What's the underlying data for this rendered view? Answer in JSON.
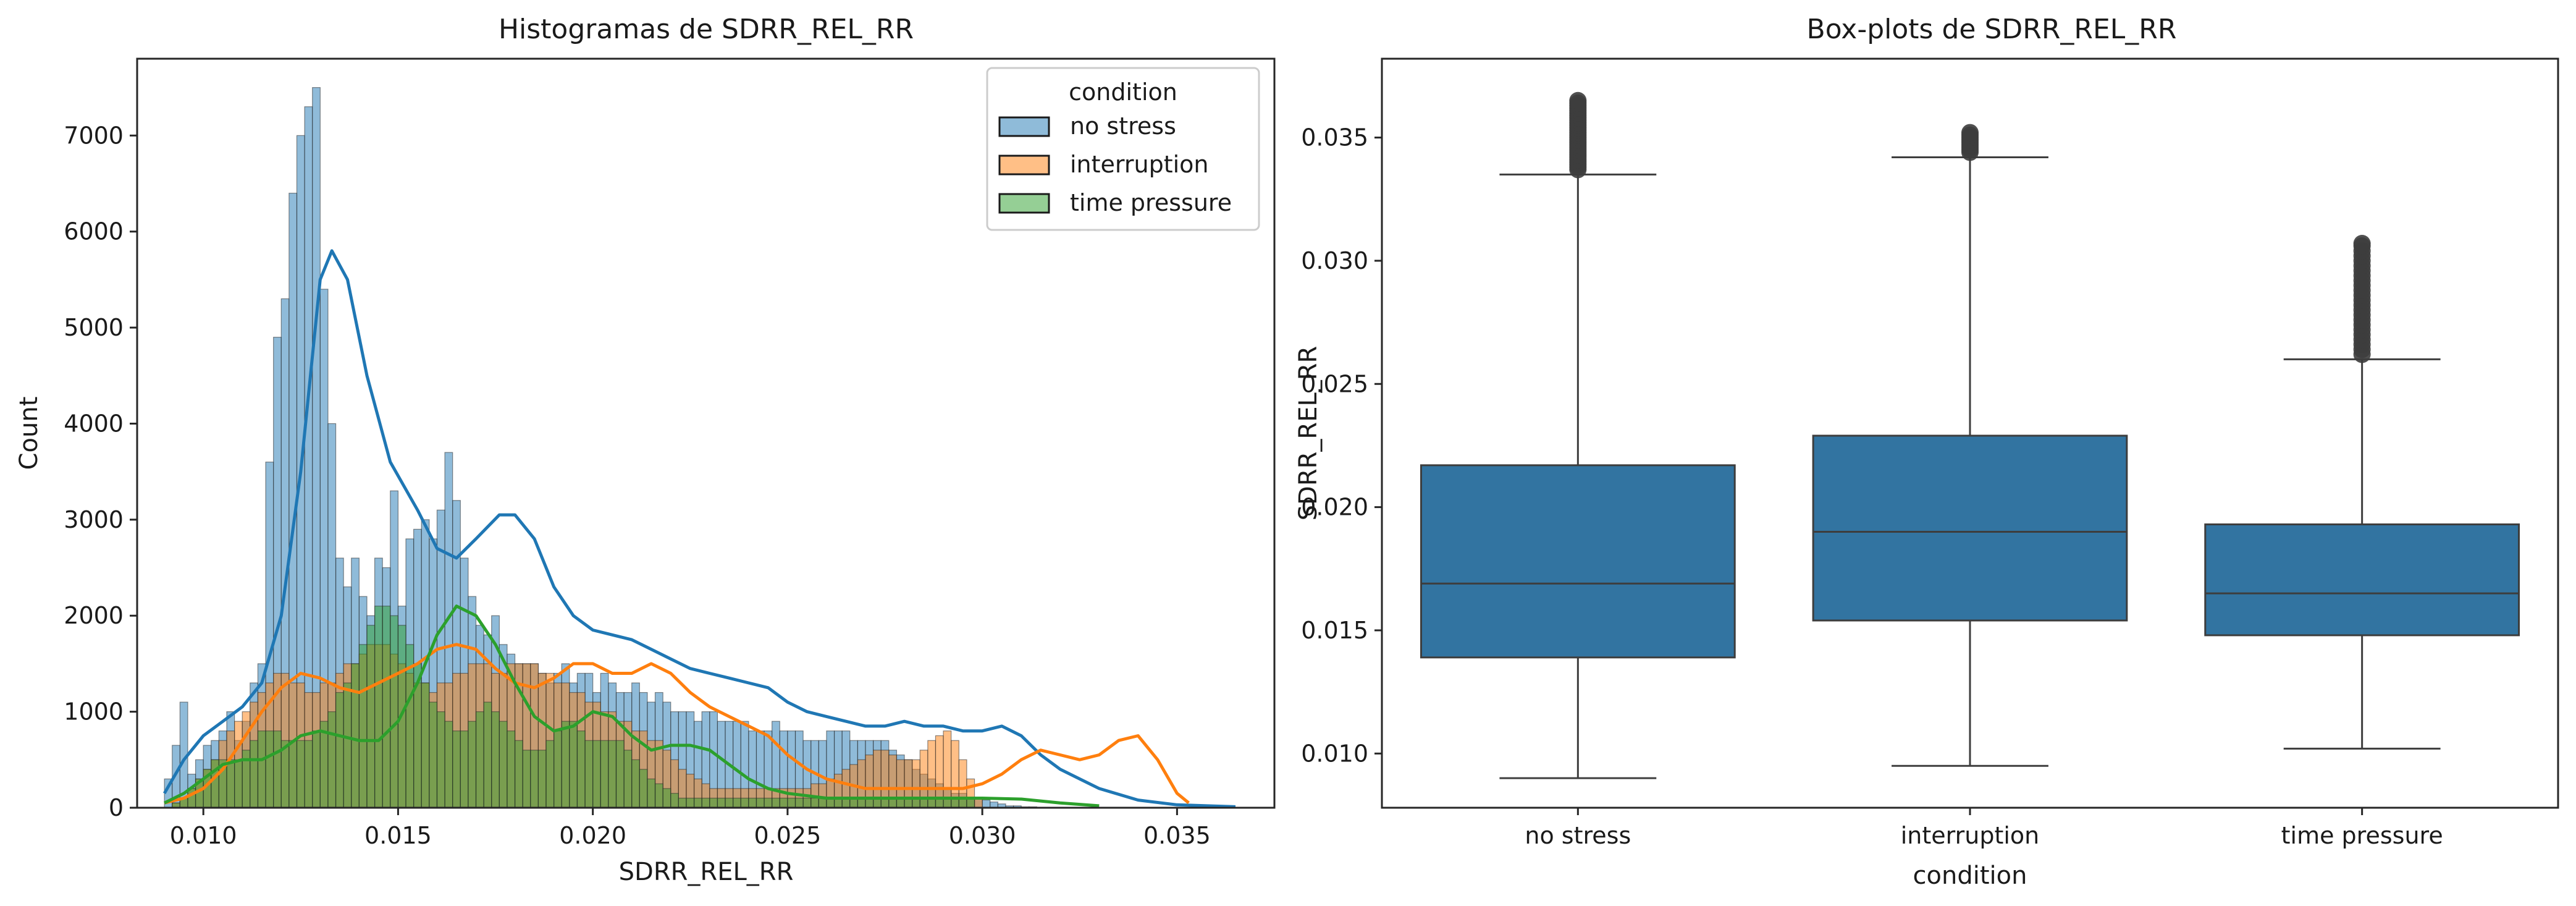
{
  "chart_data": [
    {
      "type": "histogram",
      "title": "Histogramas de SDRR_REL_RR",
      "xlabel": "SDRR_REL_RR",
      "ylabel": "Count",
      "xlim": [
        0.0083,
        0.0375
      ],
      "ylim": [
        0,
        7800
      ],
      "xticks": [
        0.01,
        0.015,
        0.02,
        0.025,
        0.03,
        0.035
      ],
      "xtick_labels": [
        "0.010",
        "0.015",
        "0.020",
        "0.025",
        "0.030",
        "0.035"
      ],
      "yticks": [
        0,
        1000,
        2000,
        3000,
        4000,
        5000,
        6000,
        7000
      ],
      "ytick_labels": [
        "0",
        "1000",
        "2000",
        "3000",
        "4000",
        "5000",
        "6000",
        "7000"
      ],
      "bin_start": 0.009,
      "bin_width": 0.0002,
      "grid": false,
      "legend": {
        "title": "condition",
        "position": "top-right"
      },
      "series": [
        {
          "name": "no stress",
          "color": "#1f77b4",
          "counts": [
            300,
            650,
            1100,
            350,
            500,
            650,
            700,
            800,
            1000,
            700,
            900,
            1300,
            1500,
            3600,
            4900,
            5300,
            6400,
            7000,
            7300,
            7500,
            5400,
            4000,
            2600,
            2300,
            2600,
            2200,
            2000,
            2600,
            2500,
            3300,
            2100,
            2800,
            2900,
            3000,
            2800,
            3100,
            3700,
            3200,
            2600,
            2200,
            1900,
            1800,
            2000,
            1700,
            1600,
            1500,
            1500,
            1500,
            1400,
            1300,
            1400,
            1500,
            1300,
            1400,
            1400,
            1200,
            1400,
            1300,
            1200,
            1200,
            1300,
            1200,
            1100,
            1200,
            1100,
            1000,
            1000,
            1000,
            900,
            1000,
            1000,
            900,
            900,
            900,
            900,
            800,
            800,
            800,
            900,
            800,
            800,
            800,
            700,
            700,
            700,
            800,
            800,
            800,
            700,
            700,
            700,
            700,
            700,
            600,
            550,
            500,
            400,
            350,
            300,
            250,
            200,
            150,
            150,
            100,
            100,
            80,
            60,
            40,
            20,
            20,
            10,
            10
          ],
          "kde": [
            [
              0.009,
              150
            ],
            [
              0.0095,
              500
            ],
            [
              0.01,
              750
            ],
            [
              0.0105,
              900
            ],
            [
              0.011,
              1050
            ],
            [
              0.0115,
              1300
            ],
            [
              0.012,
              2000
            ],
            [
              0.0125,
              3500
            ],
            [
              0.013,
              5500
            ],
            [
              0.0133,
              5800
            ],
            [
              0.0137,
              5500
            ],
            [
              0.0142,
              4500
            ],
            [
              0.0148,
              3600
            ],
            [
              0.0155,
              3100
            ],
            [
              0.016,
              2700
            ],
            [
              0.0165,
              2600
            ],
            [
              0.017,
              2800
            ],
            [
              0.0176,
              3050
            ],
            [
              0.018,
              3050
            ],
            [
              0.0185,
              2800
            ],
            [
              0.019,
              2300
            ],
            [
              0.0195,
              2000
            ],
            [
              0.02,
              1850
            ],
            [
              0.0205,
              1800
            ],
            [
              0.021,
              1750
            ],
            [
              0.0215,
              1650
            ],
            [
              0.022,
              1550
            ],
            [
              0.0225,
              1450
            ],
            [
              0.023,
              1400
            ],
            [
              0.0235,
              1350
            ],
            [
              0.024,
              1300
            ],
            [
              0.0245,
              1250
            ],
            [
              0.025,
              1100
            ],
            [
              0.0255,
              1000
            ],
            [
              0.026,
              950
            ],
            [
              0.0265,
              900
            ],
            [
              0.027,
              850
            ],
            [
              0.0275,
              850
            ],
            [
              0.028,
              900
            ],
            [
              0.0285,
              850
            ],
            [
              0.029,
              850
            ],
            [
              0.0295,
              800
            ],
            [
              0.03,
              800
            ],
            [
              0.0305,
              850
            ],
            [
              0.031,
              750
            ],
            [
              0.0315,
              550
            ],
            [
              0.032,
              400
            ],
            [
              0.0325,
              300
            ],
            [
              0.033,
              200
            ],
            [
              0.034,
              80
            ],
            [
              0.035,
              30
            ],
            [
              0.0365,
              10
            ]
          ]
        },
        {
          "name": "interruption",
          "color": "#ff7f0e",
          "counts": [
            0,
            50,
            100,
            200,
            300,
            400,
            500,
            700,
            800,
            900,
            1000,
            1100,
            1200,
            1300,
            1400,
            1400,
            1300,
            1300,
            1200,
            1200,
            1300,
            1300,
            1400,
            1500,
            1500,
            1600,
            1700,
            1700,
            1700,
            1600,
            1500,
            1400,
            1300,
            1300,
            1200,
            1300,
            1300,
            1400,
            1400,
            1500,
            1500,
            1500,
            1400,
            1400,
            1500,
            1500,
            1500,
            1500,
            1400,
            1400,
            1300,
            1300,
            1200,
            1200,
            1100,
            1100,
            1000,
            1000,
            900,
            900,
            800,
            800,
            700,
            700,
            600,
            500,
            400,
            350,
            300,
            250,
            200,
            200,
            200,
            200,
            200,
            200,
            200,
            200,
            200,
            200,
            200,
            200,
            200,
            250,
            250,
            300,
            350,
            400,
            450,
            500,
            550,
            600,
            600,
            550,
            500,
            500,
            500,
            600,
            700,
            750,
            800,
            700,
            500,
            300,
            100,
            0,
            0,
            0,
            0,
            0,
            0,
            0
          ],
          "kde": [
            [
              0.009,
              50
            ],
            [
              0.0095,
              100
            ],
            [
              0.01,
              200
            ],
            [
              0.0105,
              400
            ],
            [
              0.011,
              700
            ],
            [
              0.0115,
              1000
            ],
            [
              0.012,
              1250
            ],
            [
              0.0125,
              1400
            ],
            [
              0.013,
              1350
            ],
            [
              0.0135,
              1250
            ],
            [
              0.014,
              1200
            ],
            [
              0.0145,
              1300
            ],
            [
              0.015,
              1400
            ],
            [
              0.0155,
              1500
            ],
            [
              0.016,
              1650
            ],
            [
              0.0165,
              1700
            ],
            [
              0.017,
              1650
            ],
            [
              0.0175,
              1450
            ],
            [
              0.018,
              1300
            ],
            [
              0.0185,
              1250
            ],
            [
              0.019,
              1350
            ],
            [
              0.0195,
              1500
            ],
            [
              0.02,
              1500
            ],
            [
              0.0205,
              1400
            ],
            [
              0.021,
              1400
            ],
            [
              0.0215,
              1500
            ],
            [
              0.022,
              1400
            ],
            [
              0.0225,
              1200
            ],
            [
              0.023,
              1050
            ],
            [
              0.0235,
              950
            ],
            [
              0.024,
              850
            ],
            [
              0.0245,
              750
            ],
            [
              0.025,
              550
            ],
            [
              0.0255,
              400
            ],
            [
              0.026,
              300
            ],
            [
              0.0265,
              250
            ],
            [
              0.027,
              200
            ],
            [
              0.0275,
              200
            ],
            [
              0.028,
              200
            ],
            [
              0.0285,
              200
            ],
            [
              0.029,
              200
            ],
            [
              0.0295,
              200
            ],
            [
              0.03,
              250
            ],
            [
              0.0305,
              350
            ],
            [
              0.031,
              500
            ],
            [
              0.0315,
              600
            ],
            [
              0.032,
              550
            ],
            [
              0.0325,
              500
            ],
            [
              0.033,
              550
            ],
            [
              0.0335,
              700
            ],
            [
              0.034,
              750
            ],
            [
              0.0345,
              500
            ],
            [
              0.035,
              150
            ],
            [
              0.0353,
              50
            ]
          ]
        },
        {
          "name": "time pressure",
          "color": "#2ca02c",
          "counts": [
            0,
            50,
            100,
            200,
            300,
            400,
            500,
            500,
            500,
            500,
            600,
            700,
            800,
            800,
            800,
            700,
            700,
            700,
            700,
            800,
            900,
            1000,
            1200,
            1300,
            1500,
            1700,
            1900,
            2100,
            2100,
            2000,
            1900,
            1700,
            1500,
            1300,
            1100,
            1000,
            900,
            800,
            800,
            900,
            1000,
            1100,
            1000,
            900,
            800,
            700,
            600,
            600,
            600,
            700,
            800,
            900,
            900,
            800,
            700,
            700,
            700,
            700,
            700,
            600,
            500,
            400,
            300,
            250,
            200,
            150,
            100,
            100,
            100,
            100,
            100,
            100,
            100,
            100,
            100,
            100,
            100,
            100,
            100,
            100,
            100,
            100,
            100,
            100,
            100,
            100,
            100,
            100,
            100,
            100,
            100,
            100,
            100,
            100,
            100,
            100,
            100,
            100,
            100,
            100,
            100,
            100,
            100,
            100,
            0,
            0,
            0,
            0,
            0,
            0,
            0,
            0
          ],
          "kde": [
            [
              0.009,
              50
            ],
            [
              0.0095,
              150
            ],
            [
              0.01,
              300
            ],
            [
              0.0105,
              450
            ],
            [
              0.011,
              500
            ],
            [
              0.0115,
              500
            ],
            [
              0.012,
              600
            ],
            [
              0.0125,
              750
            ],
            [
              0.013,
              800
            ],
            [
              0.0135,
              750
            ],
            [
              0.014,
              700
            ],
            [
              0.0145,
              700
            ],
            [
              0.015,
              900
            ],
            [
              0.0155,
              1300
            ],
            [
              0.016,
              1800
            ],
            [
              0.0165,
              2100
            ],
            [
              0.017,
              2000
            ],
            [
              0.0175,
              1700
            ],
            [
              0.018,
              1300
            ],
            [
              0.0185,
              950
            ],
            [
              0.019,
              800
            ],
            [
              0.0195,
              850
            ],
            [
              0.02,
              1000
            ],
            [
              0.0205,
              950
            ],
            [
              0.021,
              750
            ],
            [
              0.0215,
              600
            ],
            [
              0.022,
              650
            ],
            [
              0.0225,
              650
            ],
            [
              0.023,
              600
            ],
            [
              0.0235,
              450
            ],
            [
              0.024,
              300
            ],
            [
              0.0245,
              200
            ],
            [
              0.025,
              150
            ],
            [
              0.026,
              100
            ],
            [
              0.027,
              100
            ],
            [
              0.028,
              100
            ],
            [
              0.029,
              100
            ],
            [
              0.03,
              100
            ],
            [
              0.031,
              90
            ],
            [
              0.032,
              50
            ],
            [
              0.033,
              20
            ]
          ]
        }
      ]
    },
    {
      "type": "box",
      "title": "Box-plots de SDRR_REL_RR",
      "xlabel": "condition",
      "ylabel": "SDRR_REL_RR",
      "ylim": [
        0.0078,
        0.0382
      ],
      "yticks": [
        0.01,
        0.015,
        0.02,
        0.025,
        0.03,
        0.035
      ],
      "ytick_labels": [
        "0.010",
        "0.015",
        "0.020",
        "0.025",
        "0.030",
        "0.035"
      ],
      "color": "#3274a1",
      "categories": [
        "no stress",
        "interruption",
        "time pressure"
      ],
      "boxes": [
        {
          "name": "no stress",
          "whislo": 0.009,
          "q1": 0.0139,
          "med": 0.0169,
          "q3": 0.0217,
          "whishi": 0.0335,
          "fliers": [
            0.0337,
            0.0338,
            0.0339,
            0.034,
            0.0341,
            0.0342,
            0.0343,
            0.0344,
            0.0345,
            0.0346,
            0.0347,
            0.0348,
            0.0349,
            0.035,
            0.0351,
            0.0352,
            0.0353,
            0.0354,
            0.0355,
            0.0356,
            0.0357,
            0.0358,
            0.0359,
            0.036,
            0.0361,
            0.0362,
            0.0363,
            0.0364,
            0.0365
          ]
        },
        {
          "name": "interruption",
          "whislo": 0.0095,
          "q1": 0.0154,
          "med": 0.019,
          "q3": 0.0229,
          "whishi": 0.0342,
          "fliers": [
            0.0344,
            0.0345,
            0.0346,
            0.0347,
            0.0348,
            0.0349,
            0.035,
            0.0351,
            0.0352
          ]
        },
        {
          "name": "time pressure",
          "whislo": 0.0102,
          "q1": 0.0148,
          "med": 0.0165,
          "q3": 0.0193,
          "whishi": 0.026,
          "fliers": [
            0.0262,
            0.0264,
            0.0266,
            0.0268,
            0.027,
            0.0272,
            0.0274,
            0.0276,
            0.0278,
            0.028,
            0.0282,
            0.0284,
            0.0286,
            0.0288,
            0.029,
            0.0292,
            0.0294,
            0.0296,
            0.0298,
            0.03,
            0.0302,
            0.0304,
            0.0306,
            0.0307
          ]
        }
      ]
    }
  ]
}
